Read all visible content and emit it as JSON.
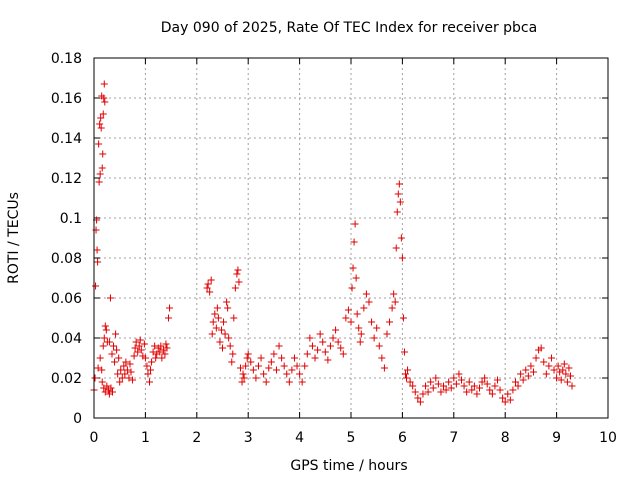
{
  "chart_data": {
    "type": "scatter",
    "title": "Day 090 of 2025, Rate Of TEC Index for receiver pbca",
    "xlabel": "GPS time / hours",
    "ylabel": "ROTI / TECUs",
    "xlim": [
      0,
      10
    ],
    "ylim": [
      0,
      0.18
    ],
    "xticks": [
      "0",
      "1",
      "2",
      "3",
      "4",
      "5",
      "6",
      "7",
      "8",
      "9",
      "10"
    ],
    "yticks": [
      "0",
      "0.02",
      "0.04",
      "0.06",
      "0.08",
      "0.1",
      "0.12",
      "0.14",
      "0.16",
      "0.18"
    ],
    "grid": true,
    "marker": "+",
    "color": "#e00000",
    "series": [
      {
        "name": "ROTI",
        "points": [
          [
            0.0,
            0.014
          ],
          [
            0.02,
            0.02
          ],
          [
            0.03,
            0.066
          ],
          [
            0.04,
            0.094
          ],
          [
            0.05,
            0.099
          ],
          [
            0.06,
            0.084
          ],
          [
            0.07,
            0.078
          ],
          [
            0.08,
            0.025
          ],
          [
            0.09,
            0.137
          ],
          [
            0.1,
            0.118
          ],
          [
            0.11,
            0.147
          ],
          [
            0.12,
            0.122
          ],
          [
            0.13,
            0.15
          ],
          [
            0.14,
            0.145
          ],
          [
            0.15,
            0.161
          ],
          [
            0.16,
            0.125
          ],
          [
            0.17,
            0.132
          ],
          [
            0.18,
            0.152
          ],
          [
            0.19,
            0.16
          ],
          [
            0.2,
            0.167
          ],
          [
            0.21,
            0.158
          ],
          [
            0.12,
            0.03
          ],
          [
            0.15,
            0.024
          ],
          [
            0.18,
            0.036
          ],
          [
            0.2,
            0.04
          ],
          [
            0.22,
            0.046
          ],
          [
            0.24,
            0.044
          ],
          [
            0.26,
            0.038
          ],
          [
            0.16,
            0.018
          ],
          [
            0.19,
            0.015
          ],
          [
            0.22,
            0.013
          ],
          [
            0.25,
            0.016
          ],
          [
            0.28,
            0.014
          ],
          [
            0.3,
            0.012
          ],
          [
            0.33,
            0.015
          ],
          [
            0.36,
            0.013
          ],
          [
            0.32,
            0.06
          ],
          [
            0.3,
            0.038
          ],
          [
            0.35,
            0.032
          ],
          [
            0.38,
            0.036
          ],
          [
            0.4,
            0.028
          ],
          [
            0.42,
            0.042
          ],
          [
            0.44,
            0.034
          ],
          [
            0.46,
            0.022
          ],
          [
            0.48,
            0.03
          ],
          [
            0.5,
            0.018
          ],
          [
            0.52,
            0.024
          ],
          [
            0.55,
            0.02
          ],
          [
            0.58,
            0.026
          ],
          [
            0.6,
            0.022
          ],
          [
            0.62,
            0.028
          ],
          [
            0.65,
            0.024
          ],
          [
            0.68,
            0.02
          ],
          [
            0.7,
            0.027
          ],
          [
            0.72,
            0.023
          ],
          [
            0.75,
            0.019
          ],
          [
            0.78,
            0.031
          ],
          [
            0.8,
            0.035
          ],
          [
            0.82,
            0.038
          ],
          [
            0.85,
            0.033
          ],
          [
            0.88,
            0.036
          ],
          [
            0.9,
            0.039
          ],
          [
            0.92,
            0.034
          ],
          [
            0.95,
            0.031
          ],
          [
            0.98,
            0.037
          ],
          [
            1.0,
            0.03
          ],
          [
            1.03,
            0.026
          ],
          [
            1.05,
            0.022
          ],
          [
            1.08,
            0.018
          ],
          [
            1.1,
            0.024
          ],
          [
            1.12,
            0.028
          ],
          [
            1.15,
            0.033
          ],
          [
            1.18,
            0.036
          ],
          [
            1.2,
            0.03
          ],
          [
            1.22,
            0.032
          ],
          [
            1.25,
            0.035
          ],
          [
            1.28,
            0.033
          ],
          [
            1.3,
            0.036
          ],
          [
            1.32,
            0.03
          ],
          [
            1.35,
            0.034
          ],
          [
            1.38,
            0.032
          ],
          [
            1.4,
            0.037
          ],
          [
            1.42,
            0.035
          ],
          [
            1.45,
            0.05
          ],
          [
            1.47,
            0.055
          ],
          [
            2.2,
            0.065
          ],
          [
            2.22,
            0.067
          ],
          [
            2.25,
            0.063
          ],
          [
            2.28,
            0.069
          ],
          [
            2.3,
            0.042
          ],
          [
            2.32,
            0.048
          ],
          [
            2.35,
            0.052
          ],
          [
            2.38,
            0.045
          ],
          [
            2.4,
            0.055
          ],
          [
            2.42,
            0.05
          ],
          [
            2.45,
            0.038
          ],
          [
            2.48,
            0.044
          ],
          [
            2.5,
            0.035
          ],
          [
            2.52,
            0.048
          ],
          [
            2.55,
            0.042
          ],
          [
            2.58,
            0.058
          ],
          [
            2.6,
            0.055
          ],
          [
            2.62,
            0.04
          ],
          [
            2.65,
            0.036
          ],
          [
            2.68,
            0.028
          ],
          [
            2.7,
            0.032
          ],
          [
            2.72,
            0.05
          ],
          [
            2.75,
            0.065
          ],
          [
            2.78,
            0.072
          ],
          [
            2.8,
            0.074
          ],
          [
            2.82,
            0.068
          ],
          [
            2.85,
            0.025
          ],
          [
            2.88,
            0.018
          ],
          [
            2.9,
            0.022
          ],
          [
            2.92,
            0.02
          ],
          [
            2.95,
            0.026
          ],
          [
            2.98,
            0.03
          ],
          [
            3.0,
            0.032
          ],
          [
            3.05,
            0.028
          ],
          [
            3.1,
            0.024
          ],
          [
            3.15,
            0.02
          ],
          [
            3.2,
            0.026
          ],
          [
            3.25,
            0.03
          ],
          [
            3.3,
            0.022
          ],
          [
            3.35,
            0.018
          ],
          [
            3.4,
            0.025
          ],
          [
            3.45,
            0.028
          ],
          [
            3.5,
            0.032
          ],
          [
            3.55,
            0.024
          ],
          [
            3.6,
            0.036
          ],
          [
            3.65,
            0.03
          ],
          [
            3.7,
            0.026
          ],
          [
            3.75,
            0.022
          ],
          [
            3.8,
            0.018
          ],
          [
            3.85,
            0.024
          ],
          [
            3.9,
            0.03
          ],
          [
            3.95,
            0.026
          ],
          [
            4.0,
            0.022
          ],
          [
            4.05,
            0.018
          ],
          [
            4.1,
            0.026
          ],
          [
            4.15,
            0.032
          ],
          [
            4.2,
            0.04
          ],
          [
            4.25,
            0.036
          ],
          [
            4.3,
            0.03
          ],
          [
            4.35,
            0.034
          ],
          [
            4.4,
            0.042
          ],
          [
            4.45,
            0.038
          ],
          [
            4.5,
            0.033
          ],
          [
            4.55,
            0.029
          ],
          [
            4.6,
            0.036
          ],
          [
            4.65,
            0.04
          ],
          [
            4.7,
            0.044
          ],
          [
            4.75,
            0.038
          ],
          [
            4.8,
            0.035
          ],
          [
            4.85,
            0.032
          ],
          [
            4.9,
            0.05
          ],
          [
            4.95,
            0.054
          ],
          [
            5.0,
            0.048
          ],
          [
            5.02,
            0.065
          ],
          [
            5.04,
            0.075
          ],
          [
            5.06,
            0.088
          ],
          [
            5.08,
            0.097
          ],
          [
            5.1,
            0.07
          ],
          [
            5.12,
            0.052
          ],
          [
            5.15,
            0.045
          ],
          [
            5.18,
            0.038
          ],
          [
            5.2,
            0.042
          ],
          [
            5.25,
            0.055
          ],
          [
            5.3,
            0.062
          ],
          [
            5.35,
            0.058
          ],
          [
            5.4,
            0.048
          ],
          [
            5.45,
            0.04
          ],
          [
            5.5,
            0.045
          ],
          [
            5.55,
            0.036
          ],
          [
            5.6,
            0.03
          ],
          [
            5.65,
            0.025
          ],
          [
            5.7,
            0.042
          ],
          [
            5.75,
            0.048
          ],
          [
            5.8,
            0.055
          ],
          [
            5.83,
            0.062
          ],
          [
            5.86,
            0.058
          ],
          [
            5.88,
            0.085
          ],
          [
            5.9,
            0.103
          ],
          [
            5.92,
            0.112
          ],
          [
            5.94,
            0.117
          ],
          [
            5.96,
            0.108
          ],
          [
            5.98,
            0.09
          ],
          [
            6.0,
            0.08
          ],
          [
            6.02,
            0.05
          ],
          [
            6.04,
            0.033
          ],
          [
            6.06,
            0.022
          ],
          [
            6.08,
            0.02
          ],
          [
            6.1,
            0.024
          ],
          [
            6.15,
            0.018
          ],
          [
            6.2,
            0.016
          ],
          [
            6.25,
            0.013
          ],
          [
            6.3,
            0.01
          ],
          [
            6.35,
            0.008
          ],
          [
            6.4,
            0.012
          ],
          [
            6.45,
            0.016
          ],
          [
            6.5,
            0.013
          ],
          [
            6.55,
            0.018
          ],
          [
            6.6,
            0.015
          ],
          [
            6.65,
            0.02
          ],
          [
            6.7,
            0.017
          ],
          [
            6.75,
            0.013
          ],
          [
            6.8,
            0.016
          ],
          [
            6.85,
            0.014
          ],
          [
            6.9,
            0.018
          ],
          [
            6.95,
            0.015
          ],
          [
            7.0,
            0.02
          ],
          [
            7.05,
            0.017
          ],
          [
            7.1,
            0.022
          ],
          [
            7.15,
            0.019
          ],
          [
            7.2,
            0.016
          ],
          [
            7.25,
            0.013
          ],
          [
            7.3,
            0.018
          ],
          [
            7.35,
            0.014
          ],
          [
            7.4,
            0.016
          ],
          [
            7.45,
            0.012
          ],
          [
            7.5,
            0.015
          ],
          [
            7.55,
            0.018
          ],
          [
            7.6,
            0.02
          ],
          [
            7.65,
            0.017
          ],
          [
            7.7,
            0.014
          ],
          [
            7.75,
            0.012
          ],
          [
            7.8,
            0.016
          ],
          [
            7.85,
            0.019
          ],
          [
            7.9,
            0.014
          ],
          [
            7.95,
            0.01
          ],
          [
            8.0,
            0.008
          ],
          [
            8.05,
            0.012
          ],
          [
            8.1,
            0.009
          ],
          [
            8.15,
            0.014
          ],
          [
            8.2,
            0.018
          ],
          [
            8.25,
            0.016
          ],
          [
            8.3,
            0.022
          ],
          [
            8.35,
            0.019
          ],
          [
            8.4,
            0.024
          ],
          [
            8.45,
            0.021
          ],
          [
            8.5,
            0.026
          ],
          [
            8.55,
            0.023
          ],
          [
            8.6,
            0.03
          ],
          [
            8.65,
            0.034
          ],
          [
            8.7,
            0.035
          ],
          [
            8.75,
            0.028
          ],
          [
            8.8,
            0.022
          ],
          [
            8.85,
            0.026
          ],
          [
            8.9,
            0.03
          ],
          [
            8.95,
            0.024
          ],
          [
            9.0,
            0.02
          ],
          [
            9.03,
            0.026
          ],
          [
            9.06,
            0.023
          ],
          [
            9.09,
            0.019
          ],
          [
            9.12,
            0.024
          ],
          [
            9.15,
            0.027
          ],
          [
            9.18,
            0.022
          ],
          [
            9.21,
            0.018
          ],
          [
            9.24,
            0.025
          ],
          [
            9.27,
            0.021
          ],
          [
            9.3,
            0.016
          ]
        ]
      }
    ]
  }
}
